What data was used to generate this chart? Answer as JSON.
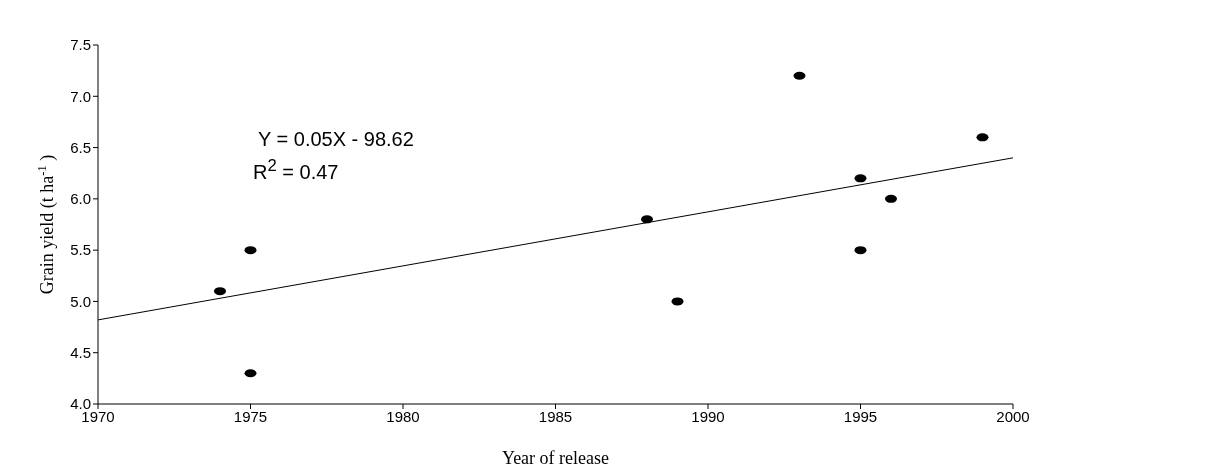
{
  "chart_data": {
    "type": "scatter",
    "xlabel": "Year of release",
    "ylabel": "Grain yield (t ha$^{-1}$)",
    "annotations": [
      "Y = 0.05X - 98.62",
      "R$^{2}$ = 0.47"
    ],
    "series": [
      {
        "type": "scatter",
        "color": "#000000",
        "marker": "circle",
        "x": [
          1974,
          1975,
          1975,
          1988,
          1989,
          1993,
          1995,
          1995,
          1996,
          1999
        ],
        "values": [
          5.1,
          5.5,
          4.3,
          5.8,
          5.0,
          7.2,
          6.2,
          5.5,
          6.0,
          6.6
        ]
      },
      {
        "type": "line",
        "color": "#000000",
        "marker": "none",
        "line_style": "solid",
        "x": [
          1970,
          2000
        ],
        "values": [
          4.82,
          6.4
        ]
      }
    ],
    "xlim": [
      1970,
      2000
    ],
    "xticks": [
      1970,
      1975,
      1980,
      1985,
      1990,
      1995,
      2000
    ],
    "ylim": [
      4.0,
      7.5
    ],
    "yticks": [
      {
        "value": 4,
        "label": "4.0"
      },
      4.5,
      {
        "value": 5,
        "label": "5.0"
      },
      5.5,
      {
        "value": 6,
        "label": "6.0"
      },
      6.5,
      {
        "value": 7,
        "label": "7.0"
      },
      7.5
    ],
    "grid": false
  }
}
